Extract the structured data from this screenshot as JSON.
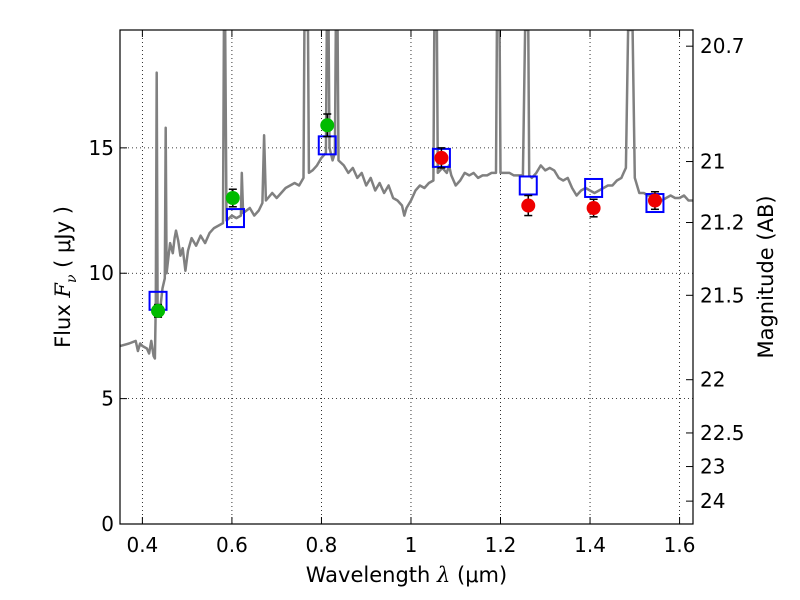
{
  "chart_data": {
    "type": "scatter",
    "xlabel": "Wavelength  λ (μm)",
    "ylabel": "Flux  F_ν  ( μJy )",
    "ylabel_parts": {
      "prefix": "Flux  ",
      "symbol": "F",
      "subscript": "ν",
      "unit": "  ( μJy )"
    },
    "xlabel_parts": {
      "prefix": "Wavelength  ",
      "symbol": "λ",
      "unit": " (μm)"
    },
    "y2label": "Magnitude (AB)",
    "xlim": [
      0.35,
      1.63
    ],
    "ylim": [
      0,
      19.7
    ],
    "grid": true,
    "x_ticks": [
      0.4,
      0.6,
      0.8,
      1.0,
      1.2,
      1.4,
      1.6
    ],
    "x_tick_labels": [
      "0.4",
      "0.6",
      "0.8",
      "1",
      "1.2",
      "1.4",
      "1.6"
    ],
    "y_ticks": [
      0,
      5,
      10,
      15
    ],
    "y_tick_labels": [
      "0",
      "5",
      "10",
      "15"
    ],
    "y2_ticks": [
      20.7,
      21,
      21.2,
      21.5,
      22,
      22.5,
      23,
      24
    ],
    "y2_tick_labels": [
      "20.7",
      "21",
      "21.2",
      "21.5",
      "22",
      "22.5",
      "23",
      "24"
    ],
    "colors": {
      "model": "#808080",
      "model_box": "#0000ff",
      "green_points": "#00bb00",
      "red_points": "#ee0000",
      "errorbar": "#000000"
    },
    "series": [
      {
        "kind": "line",
        "points": [
          [
            0.35,
            7.1
          ],
          [
            0.37,
            7.2
          ],
          [
            0.385,
            7.3
          ],
          [
            0.39,
            6.9
          ],
          [
            0.395,
            7.2
          ],
          [
            0.4,
            7.1
          ],
          [
            0.41,
            7.0
          ],
          [
            0.415,
            6.8
          ],
          [
            0.42,
            7.3
          ],
          [
            0.425,
            6.7
          ],
          [
            0.428,
            6.6
          ],
          [
            0.43,
            8.8
          ],
          [
            0.432,
            18.0
          ],
          [
            0.434,
            8.6
          ],
          [
            0.44,
            8.6
          ],
          [
            0.445,
            9.4
          ],
          [
            0.45,
            9.8
          ],
          [
            0.452,
            15.8
          ],
          [
            0.454,
            10.0
          ],
          [
            0.458,
            10.6
          ],
          [
            0.462,
            11.2
          ],
          [
            0.468,
            10.8
          ],
          [
            0.472,
            11.4
          ],
          [
            0.475,
            11.7
          ],
          [
            0.48,
            11.3
          ],
          [
            0.485,
            10.7
          ],
          [
            0.49,
            11.0
          ],
          [
            0.496,
            10.1
          ],
          [
            0.502,
            10.9
          ],
          [
            0.51,
            11.4
          ],
          [
            0.52,
            11.1
          ],
          [
            0.53,
            11.5
          ],
          [
            0.54,
            11.2
          ],
          [
            0.55,
            11.6
          ],
          [
            0.56,
            11.8
          ],
          [
            0.57,
            11.9
          ],
          [
            0.58,
            12.0
          ],
          [
            0.582,
            19.7
          ],
          [
            0.585,
            19.7
          ],
          [
            0.588,
            12.1
          ],
          [
            0.6,
            12.3
          ],
          [
            0.61,
            12.2
          ],
          [
            0.62,
            12.3
          ],
          [
            0.622,
            14.0
          ],
          [
            0.625,
            12.4
          ],
          [
            0.64,
            12.6
          ],
          [
            0.65,
            12.3
          ],
          [
            0.66,
            12.5
          ],
          [
            0.668,
            12.8
          ],
          [
            0.672,
            15.5
          ],
          [
            0.676,
            12.9
          ],
          [
            0.69,
            13.2
          ],
          [
            0.7,
            13.0
          ],
          [
            0.72,
            13.4
          ],
          [
            0.73,
            13.5
          ],
          [
            0.74,
            13.6
          ],
          [
            0.75,
            13.5
          ],
          [
            0.76,
            13.8
          ],
          [
            0.762,
            19.7
          ],
          [
            0.77,
            19.7
          ],
          [
            0.772,
            14.0
          ],
          [
            0.78,
            14.1
          ],
          [
            0.79,
            14.3
          ],
          [
            0.8,
            14.6
          ],
          [
            0.81,
            14.8
          ],
          [
            0.812,
            19.7
          ],
          [
            0.816,
            19.7
          ],
          [
            0.818,
            15.0
          ],
          [
            0.825,
            14.5
          ],
          [
            0.83,
            14.8
          ],
          [
            0.832,
            19.7
          ],
          [
            0.836,
            19.7
          ],
          [
            0.838,
            14.5
          ],
          [
            0.85,
            14.3
          ],
          [
            0.86,
            14.0
          ],
          [
            0.87,
            14.2
          ],
          [
            0.88,
            13.8
          ],
          [
            0.89,
            14.0
          ],
          [
            0.9,
            13.5
          ],
          [
            0.91,
            13.8
          ],
          [
            0.92,
            13.3
          ],
          [
            0.93,
            13.6
          ],
          [
            0.94,
            13.2
          ],
          [
            0.95,
            13.5
          ],
          [
            0.96,
            13.0
          ],
          [
            0.97,
            12.9
          ],
          [
            0.98,
            12.7
          ],
          [
            0.985,
            12.3
          ],
          [
            0.99,
            12.6
          ],
          [
            1.0,
            12.9
          ],
          [
            1.01,
            13.3
          ],
          [
            1.02,
            13.5
          ],
          [
            1.03,
            13.4
          ],
          [
            1.04,
            13.6
          ],
          [
            1.05,
            13.7
          ],
          [
            1.052,
            19.7
          ],
          [
            1.058,
            19.7
          ],
          [
            1.06,
            14.0
          ],
          [
            1.07,
            14.2
          ],
          [
            1.08,
            14.0
          ],
          [
            1.085,
            14.3
          ],
          [
            1.09,
            13.9
          ],
          [
            1.1,
            13.5
          ],
          [
            1.11,
            13.7
          ],
          [
            1.12,
            14.0
          ],
          [
            1.13,
            13.9
          ],
          [
            1.14,
            14.0
          ],
          [
            1.15,
            13.8
          ],
          [
            1.16,
            13.9
          ],
          [
            1.17,
            13.9
          ],
          [
            1.18,
            14.0
          ],
          [
            1.19,
            14.0
          ],
          [
            1.192,
            19.7
          ],
          [
            1.198,
            19.7
          ],
          [
            1.2,
            14.0
          ],
          [
            1.21,
            14.0
          ],
          [
            1.22,
            14.0
          ],
          [
            1.23,
            13.9
          ],
          [
            1.24,
            13.9
          ],
          [
            1.25,
            13.9
          ],
          [
            1.255,
            19.7
          ],
          [
            1.262,
            19.7
          ],
          [
            1.264,
            13.9
          ],
          [
            1.27,
            13.8
          ],
          [
            1.28,
            14.0
          ],
          [
            1.29,
            14.3
          ],
          [
            1.3,
            14.1
          ],
          [
            1.31,
            14.2
          ],
          [
            1.32,
            14.1
          ],
          [
            1.33,
            13.8
          ],
          [
            1.34,
            13.7
          ],
          [
            1.35,
            13.8
          ],
          [
            1.36,
            13.4
          ],
          [
            1.37,
            13.1
          ],
          [
            1.38,
            13.3
          ],
          [
            1.39,
            13.4
          ],
          [
            1.4,
            13.3
          ],
          [
            1.41,
            13.2
          ],
          [
            1.42,
            13.3
          ],
          [
            1.43,
            13.4
          ],
          [
            1.44,
            13.5
          ],
          [
            1.45,
            13.5
          ],
          [
            1.46,
            13.7
          ],
          [
            1.47,
            13.8
          ],
          [
            1.475,
            14.0
          ],
          [
            1.48,
            14.2
          ],
          [
            1.485,
            19.7
          ],
          [
            1.495,
            19.7
          ],
          [
            1.5,
            13.8
          ],
          [
            1.51,
            13.2
          ],
          [
            1.52,
            13.2
          ],
          [
            1.53,
            13.1
          ],
          [
            1.54,
            13.1
          ],
          [
            1.55,
            13.1
          ],
          [
            1.56,
            12.9
          ],
          [
            1.57,
            13.0
          ],
          [
            1.58,
            13.1
          ],
          [
            1.59,
            13.0
          ],
          [
            1.6,
            13.0
          ],
          [
            1.61,
            13.1
          ],
          [
            1.62,
            12.9
          ],
          [
            1.63,
            12.9
          ]
        ]
      },
      {
        "kind": "model_boxes",
        "x": [
          0.435,
          0.608,
          0.813,
          1.068,
          1.262,
          1.408,
          1.545
        ],
        "y": [
          8.9,
          12.2,
          15.1,
          14.6,
          13.5,
          13.4,
          12.8
        ]
      },
      {
        "kind": "green_points",
        "x": [
          0.435,
          0.602,
          0.813
        ],
        "y": [
          8.5,
          13.0,
          15.9
        ],
        "yerr": [
          0.25,
          0.35,
          0.45
        ]
      },
      {
        "kind": "red_points",
        "x": [
          1.068,
          1.262,
          1.408,
          1.545
        ],
        "y": [
          14.6,
          12.7,
          12.6,
          12.9
        ],
        "yerr": [
          0.4,
          0.4,
          0.35,
          0.35
        ]
      }
    ]
  }
}
